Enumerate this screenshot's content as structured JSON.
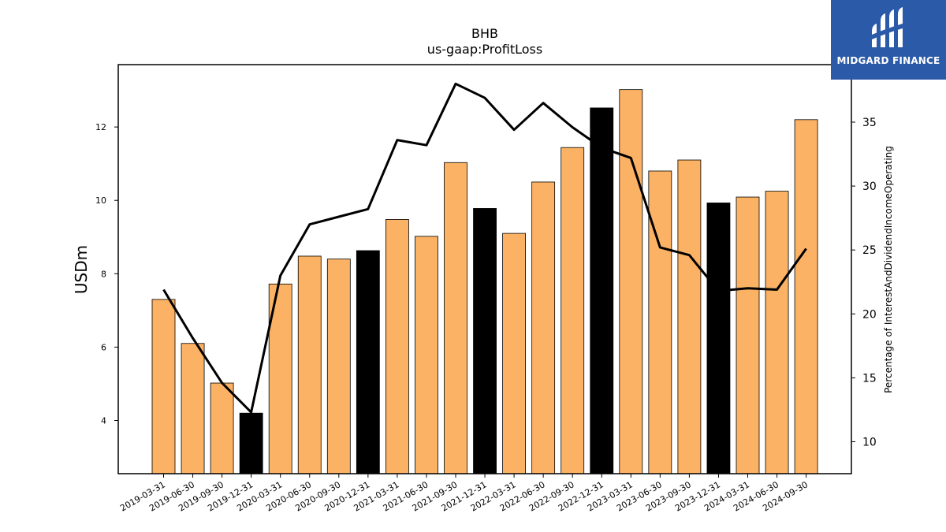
{
  "logo": {
    "text": "MIDGARD FINANCE",
    "background": "#2a5aa8"
  },
  "chart_data": {
    "type": "bar",
    "title": "BHB",
    "subtitle": "us-gaap:ProfitLoss",
    "ylabel": "USDm",
    "y2label": "Percentage of InterestAndDividendIncomeOperating",
    "ylim": [
      2.55,
      13.7
    ],
    "y2lim": [
      7.5,
      39.5
    ],
    "yticks": [
      4,
      6,
      8,
      10,
      12
    ],
    "y2ticks": [
      10,
      15,
      20,
      25,
      30,
      35
    ],
    "categories": [
      "2019-03-31",
      "2019-06-30",
      "2019-09-30",
      "2019-12-31",
      "2020-03-31",
      "2020-06-30",
      "2020-09-30",
      "2020-12-31",
      "2021-03-31",
      "2021-06-30",
      "2021-09-30",
      "2021-12-31",
      "2022-03-31",
      "2022-06-30",
      "2022-09-30",
      "2022-12-31",
      "2023-03-31",
      "2023-06-30",
      "2023-09-30",
      "2023-12-31",
      "2024-03-31",
      "2024-06-30",
      "2024-09-30"
    ],
    "series": [
      {
        "type": "bar",
        "axis": "left",
        "values": [
          7.3,
          6.1,
          5.02,
          4.2,
          7.72,
          8.48,
          8.4,
          8.63,
          9.48,
          9.02,
          11.03,
          9.78,
          9.1,
          10.5,
          11.44,
          12.52,
          13.02,
          10.8,
          11.1,
          9.93,
          10.09,
          10.25,
          12.2
        ],
        "colors": [
          "#fbb264",
          "#fbb264",
          "#fbb264",
          "#000000",
          "#fbb264",
          "#fbb264",
          "#fbb264",
          "#000000",
          "#fbb264",
          "#fbb264",
          "#fbb264",
          "#000000",
          "#fbb264",
          "#fbb264",
          "#fbb264",
          "#000000",
          "#fbb264",
          "#fbb264",
          "#fbb264",
          "#000000",
          "#fbb264",
          "#fbb264",
          "#fbb264"
        ]
      },
      {
        "type": "line",
        "axis": "right",
        "color": "#000000",
        "values": [
          21.9,
          18.1,
          14.6,
          12.3,
          23.0,
          27.0,
          27.6,
          28.2,
          33.6,
          33.2,
          38.0,
          36.9,
          34.4,
          36.5,
          34.6,
          33.0,
          32.2,
          25.2,
          24.6,
          21.8,
          22.0,
          21.9,
          25.1
        ]
      }
    ],
    "grid": false,
    "legend": "none"
  }
}
